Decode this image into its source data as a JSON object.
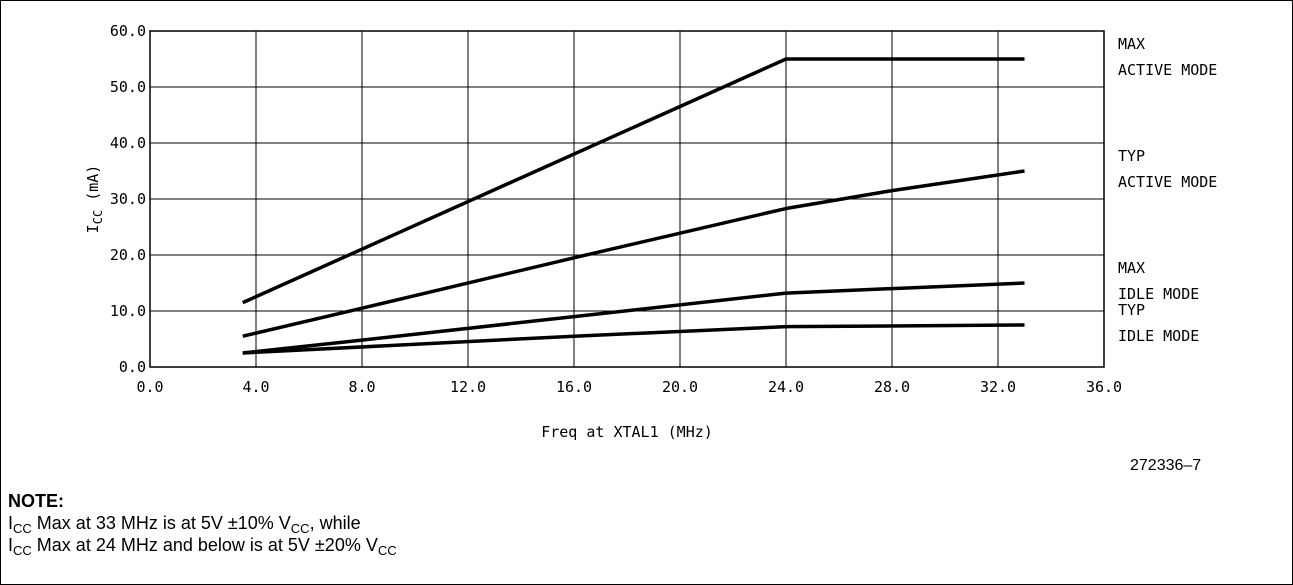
{
  "chart_data": {
    "type": "line",
    "xlabel": "Freq at XTAL1 (MHz)",
    "ylabel": {
      "main": "I",
      "sub": "CC",
      "unit": "(mA)"
    },
    "xlim": [
      0,
      36
    ],
    "ylim": [
      0,
      60
    ],
    "x_ticks": [
      "0.0",
      "4.0",
      "8.0",
      "12.0",
      "16.0",
      "20.0",
      "24.0",
      "28.0",
      "32.0",
      "36.0"
    ],
    "y_ticks": [
      "0.0",
      "10.0",
      "20.0",
      "30.0",
      "40.0",
      "50.0",
      "60.0"
    ],
    "grid": true,
    "series": [
      {
        "name": [
          "MAX",
          "ACTIVE MODE"
        ],
        "x": [
          3.5,
          24,
          33
        ],
        "y": [
          11.5,
          55,
          55
        ]
      },
      {
        "name": [
          "TYP",
          "ACTIVE MODE"
        ],
        "x": [
          3.5,
          8,
          16,
          24,
          28,
          33
        ],
        "y": [
          5.5,
          10.5,
          19.5,
          28.3,
          31.5,
          35
        ]
      },
      {
        "name": [
          "MAX",
          "IDLE MODE"
        ],
        "x": [
          3.5,
          8,
          16,
          24,
          28,
          33
        ],
        "y": [
          2.5,
          4.8,
          9,
          13.2,
          14,
          15
        ]
      },
      {
        "name": [
          "TYP",
          "IDLE MODE"
        ],
        "x": [
          3.5,
          16,
          24,
          33
        ],
        "y": [
          2.5,
          5.5,
          7.2,
          7.5
        ]
      }
    ]
  },
  "figure_id": "272336–7",
  "note": {
    "heading": "NOTE:",
    "line1": {
      "i": "I",
      "i_sub": "CC",
      "text": " Max at 33 MHz is at 5V  ±10% V",
      "v_sub": "CC",
      "tail": ", while"
    },
    "line2": {
      "i": "I",
      "i_sub": "CC",
      "text": " Max at 24 MHz and below is at 5V  ±20% V",
      "v_sub": "CC",
      "tail": ""
    }
  }
}
